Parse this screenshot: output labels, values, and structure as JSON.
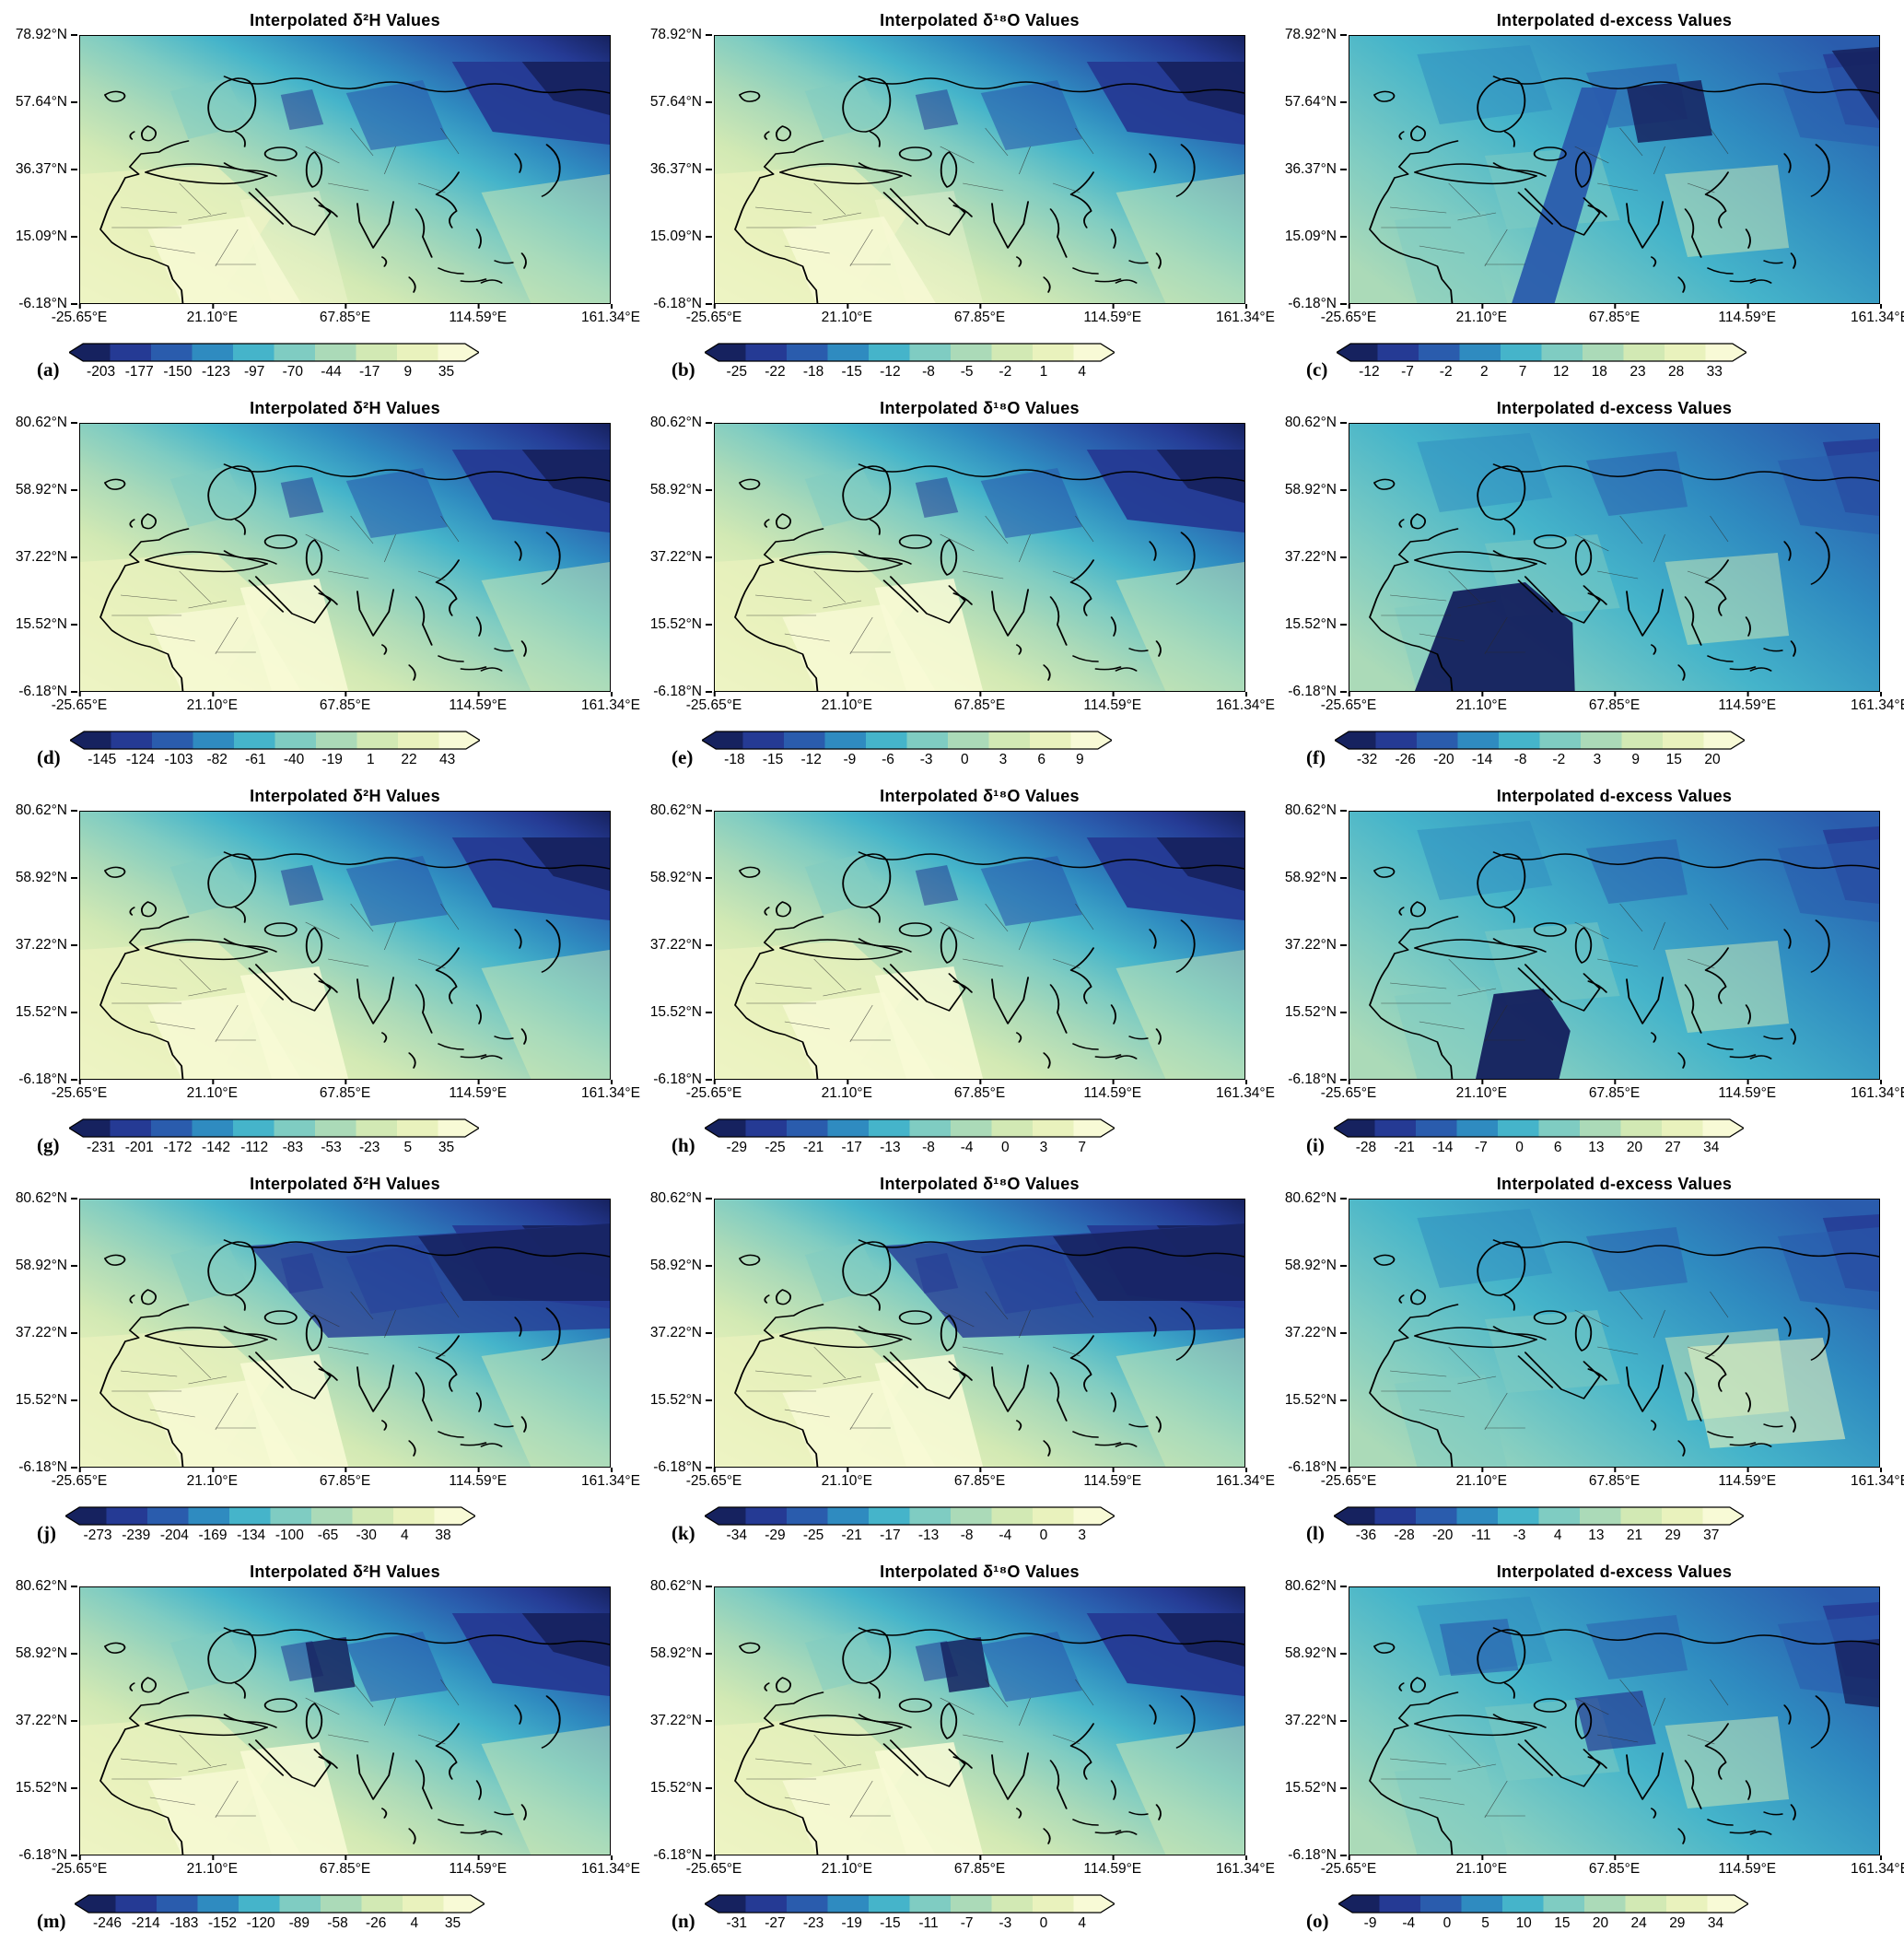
{
  "figure": {
    "rows": 5,
    "cols": 3,
    "colormap": "YlGnBu reversed (dark navy blue to pale cream yellow)",
    "palette": [
      "#16225f",
      "#253a94",
      "#2a5cad",
      "#2f8bc0",
      "#45b4ca",
      "#7fccc2",
      "#abdab8",
      "#d2e9b4",
      "#e9f2bd",
      "#f8fad6"
    ]
  },
  "chart_data": [
    {
      "letter": "(a)",
      "variable": "δ²H",
      "type": "heatmap",
      "title": "Interpolated δ²H  Values",
      "y_ticks": [
        "78.92°N",
        "57.64°N",
        "36.37°N",
        "15.09°N",
        "-6.18°N"
      ],
      "x_ticks": [
        "-25.65°E",
        "21.10°E",
        "67.85°E",
        "114.59°E",
        "161.34°E"
      ],
      "colorbar_ticks": [
        "-203",
        "-177",
        "-150",
        "-123",
        "-97",
        "-70",
        "-44",
        "-17",
        "9",
        "35"
      ]
    },
    {
      "letter": "(b)",
      "variable": "δ¹⁸O",
      "type": "heatmap",
      "title": "Interpolated δ¹⁸O  Values",
      "y_ticks": [
        "78.92°N",
        "57.64°N",
        "36.37°N",
        "15.09°N",
        "-6.18°N"
      ],
      "x_ticks": [
        "-25.65°E",
        "21.10°E",
        "67.85°E",
        "114.59°E",
        "161.34°E"
      ],
      "colorbar_ticks": [
        "-25",
        "-22",
        "-18",
        "-15",
        "-12",
        "-8",
        "-5",
        "-2",
        "1",
        "4"
      ]
    },
    {
      "letter": "(c)",
      "variable": "d-excess",
      "type": "heatmap",
      "title": "Interpolated d-excess Values",
      "y_ticks": [
        "78.92°N",
        "57.64°N",
        "36.37°N",
        "15.09°N",
        "-6.18°N"
      ],
      "x_ticks": [
        "-25.65°E",
        "21.10°E",
        "67.85°E",
        "114.59°E",
        "161.34°E"
      ],
      "colorbar_ticks": [
        "-12",
        "-7",
        "-2",
        "2",
        "7",
        "12",
        "18",
        "23",
        "28",
        "33"
      ]
    },
    {
      "letter": "(d)",
      "variable": "δ²H",
      "type": "heatmap",
      "title": "Interpolated δ²H  Values",
      "y_ticks": [
        "80.62°N",
        "58.92°N",
        "37.22°N",
        "15.52°N",
        "-6.18°N"
      ],
      "x_ticks": [
        "-25.65°E",
        "21.10°E",
        "67.85°E",
        "114.59°E",
        "161.34°E"
      ],
      "colorbar_ticks": [
        "-145",
        "-124",
        "-103",
        "-82",
        "-61",
        "-40",
        "-19",
        "1",
        "22",
        "43"
      ]
    },
    {
      "letter": "(e)",
      "variable": "δ¹⁸O",
      "type": "heatmap",
      "title": "Interpolated δ¹⁸O  Values",
      "y_ticks": [
        "80.62°N",
        "58.92°N",
        "37.22°N",
        "15.52°N",
        "-6.18°N"
      ],
      "x_ticks": [
        "-25.65°E",
        "21.10°E",
        "67.85°E",
        "114.59°E",
        "161.34°E"
      ],
      "colorbar_ticks": [
        "-18",
        "-15",
        "-12",
        "-9",
        "-6",
        "-3",
        "0",
        "3",
        "6",
        "9"
      ]
    },
    {
      "letter": "(f)",
      "variable": "d-excess",
      "type": "heatmap",
      "title": "Interpolated d-excess Values",
      "y_ticks": [
        "80.62°N",
        "58.92°N",
        "37.22°N",
        "15.52°N",
        "-6.18°N"
      ],
      "x_ticks": [
        "-25.65°E",
        "21.10°E",
        "67.85°E",
        "114.59°E",
        "161.34°E"
      ],
      "colorbar_ticks": [
        "-32",
        "-26",
        "-20",
        "-14",
        "-8",
        "-2",
        "3",
        "9",
        "15",
        "20"
      ]
    },
    {
      "letter": "(g)",
      "variable": "δ²H",
      "type": "heatmap",
      "title": "Interpolated δ²H  Values",
      "y_ticks": [
        "80.62°N",
        "58.92°N",
        "37.22°N",
        "15.52°N",
        "-6.18°N"
      ],
      "x_ticks": [
        "-25.65°E",
        "21.10°E",
        "67.85°E",
        "114.59°E",
        "161.34°E"
      ],
      "colorbar_ticks": [
        "-231",
        "-201",
        "-172",
        "-142",
        "-112",
        "-83",
        "-53",
        "-23",
        "5",
        "35"
      ]
    },
    {
      "letter": "(h)",
      "variable": "δ¹⁸O",
      "type": "heatmap",
      "title": "Interpolated δ¹⁸O  Values",
      "y_ticks": [
        "80.62°N",
        "58.92°N",
        "37.22°N",
        "15.52°N",
        "-6.18°N"
      ],
      "x_ticks": [
        "-25.65°E",
        "21.10°E",
        "67.85°E",
        "114.59°E",
        "161.34°E"
      ],
      "colorbar_ticks": [
        "-29",
        "-25",
        "-21",
        "-17",
        "-13",
        "-8",
        "-4",
        "0",
        "3",
        "7"
      ]
    },
    {
      "letter": "(i)",
      "variable": "d-excess",
      "type": "heatmap",
      "title": "Interpolated d-excess Values",
      "y_ticks": [
        "80.62°N",
        "58.92°N",
        "37.22°N",
        "15.52°N",
        "-6.18°N"
      ],
      "x_ticks": [
        "-25.65°E",
        "21.10°E",
        "67.85°E",
        "114.59°E",
        "161.34°E"
      ],
      "colorbar_ticks": [
        "-28",
        "-21",
        "-14",
        "-7",
        "0",
        "6",
        "13",
        "20",
        "27",
        "34"
      ]
    },
    {
      "letter": "(j)",
      "variable": "δ²H",
      "type": "heatmap",
      "title": "Interpolated δ²H  Values",
      "y_ticks": [
        "80.62°N",
        "58.92°N",
        "37.22°N",
        "15.52°N",
        "-6.18°N"
      ],
      "x_ticks": [
        "-25.65°E",
        "21.10°E",
        "67.85°E",
        "114.59°E",
        "161.34°E"
      ],
      "colorbar_ticks": [
        "-273",
        "-239",
        "-204",
        "-169",
        "-134",
        "-100",
        "-65",
        "-30",
        "4",
        "38"
      ]
    },
    {
      "letter": "(k)",
      "variable": "δ¹⁸O",
      "type": "heatmap",
      "title": "Interpolated δ¹⁸O  Values",
      "y_ticks": [
        "80.62°N",
        "58.92°N",
        "37.22°N",
        "15.52°N",
        "-6.18°N"
      ],
      "x_ticks": [
        "-25.65°E",
        "21.10°E",
        "67.85°E",
        "114.59°E",
        "161.34°E"
      ],
      "colorbar_ticks": [
        "-34",
        "-29",
        "-25",
        "-21",
        "-17",
        "-13",
        "-8",
        "-4",
        "0",
        "3"
      ]
    },
    {
      "letter": "(l)",
      "variable": "d-excess",
      "type": "heatmap",
      "title": "Interpolated d-excess Values",
      "y_ticks": [
        "80.62°N",
        "58.92°N",
        "37.22°N",
        "15.52°N",
        "-6.18°N"
      ],
      "x_ticks": [
        "-25.65°E",
        "21.10°E",
        "67.85°E",
        "114.59°E",
        "161.34°E"
      ],
      "colorbar_ticks": [
        "-36",
        "-28",
        "-20",
        "-11",
        "-3",
        "4",
        "13",
        "21",
        "29",
        "37"
      ]
    },
    {
      "letter": "(m)",
      "variable": "δ²H",
      "type": "heatmap",
      "title": "Interpolated δ²H  Values",
      "y_ticks": [
        "80.62°N",
        "58.92°N",
        "37.22°N",
        "15.52°N",
        "-6.18°N"
      ],
      "x_ticks": [
        "-25.65°E",
        "21.10°E",
        "67.85°E",
        "114.59°E",
        "161.34°E"
      ],
      "colorbar_ticks": [
        "-246",
        "-214",
        "-183",
        "-152",
        "-120",
        "-89",
        "-58",
        "-26",
        "4",
        "35"
      ]
    },
    {
      "letter": "(n)",
      "variable": "δ¹⁸O",
      "type": "heatmap",
      "title": "Interpolated δ¹⁸O  Values",
      "y_ticks": [
        "80.62°N",
        "58.92°N",
        "37.22°N",
        "15.52°N",
        "-6.18°N"
      ],
      "x_ticks": [
        "-25.65°E",
        "21.10°E",
        "67.85°E",
        "114.59°E",
        "161.34°E"
      ],
      "colorbar_ticks": [
        "-31",
        "-27",
        "-23",
        "-19",
        "-15",
        "-11",
        "-7",
        "-3",
        "0",
        "4"
      ]
    },
    {
      "letter": "(o)",
      "variable": "d-excess",
      "type": "heatmap",
      "title": "Interpolated d-excess Values",
      "y_ticks": [
        "80.62°N",
        "58.92°N",
        "37.22°N",
        "15.52°N",
        "-6.18°N"
      ],
      "x_ticks": [
        "-25.65°E",
        "21.10°E",
        "67.85°E",
        "114.59°E",
        "161.34°E"
      ],
      "colorbar_ticks": [
        "-9",
        "-4",
        "0",
        "5",
        "10",
        "15",
        "20",
        "24",
        "29",
        "34"
      ]
    }
  ]
}
